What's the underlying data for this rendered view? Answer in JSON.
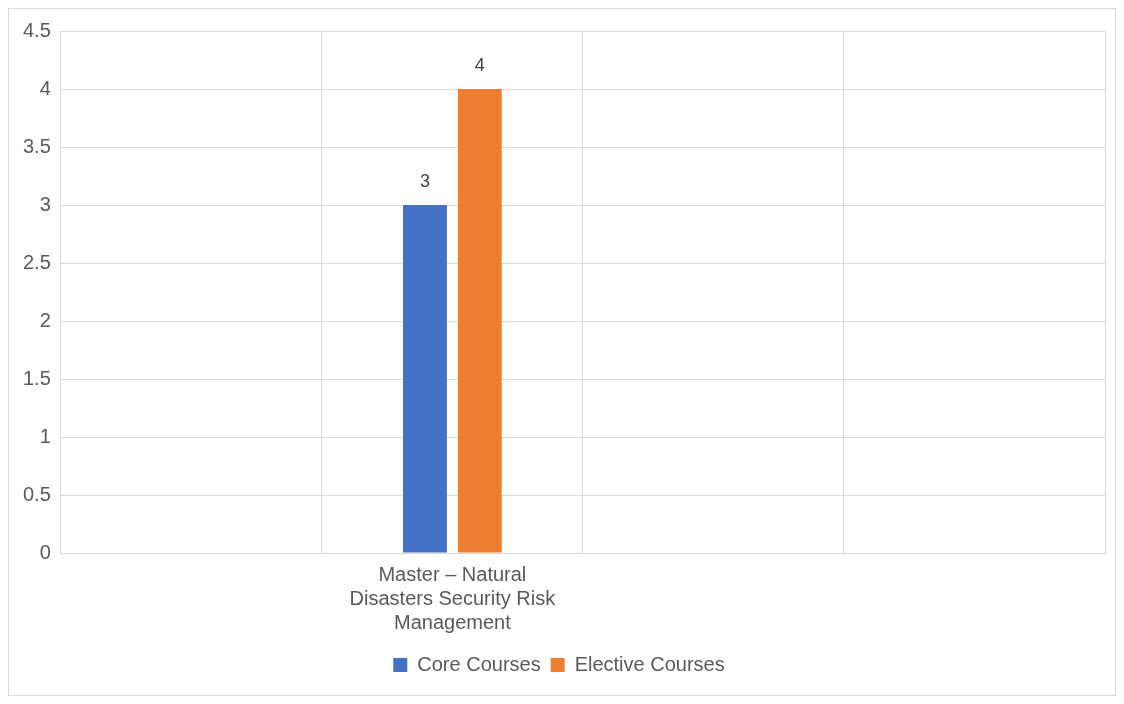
{
  "chart_data": {
    "type": "bar",
    "categories": [
      null,
      "Master – Natural Disasters Security Risk Management",
      null,
      null
    ],
    "series": [
      {
        "name": "Core Courses",
        "color": "#4472c4",
        "values": [
          null,
          3,
          null,
          null
        ]
      },
      {
        "name": "Elective Courses",
        "color": "#ed7d31",
        "values": [
          null,
          4,
          null,
          null
        ]
      }
    ],
    "ylim": [
      0,
      4.5
    ],
    "yticks": [
      0,
      0.5,
      1,
      1.5,
      2,
      2.5,
      3,
      3.5,
      4,
      4.5
    ],
    "grid": true,
    "legend": "bottom",
    "data_labels": true
  }
}
